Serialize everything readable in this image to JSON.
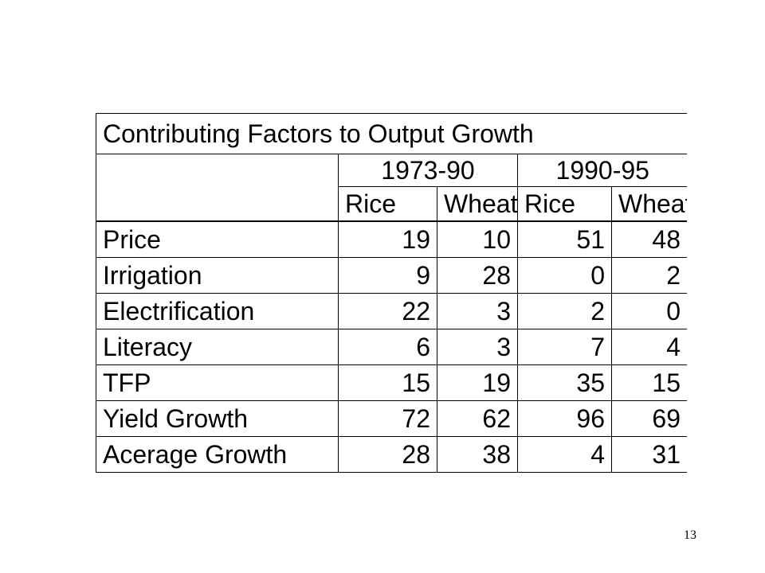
{
  "table": {
    "title": "Contributing Factors to Output Growth",
    "periods": [
      "1973-90",
      "1990-95"
    ],
    "crops": [
      "Rice",
      "Wheat",
      "Rice",
      "Wheat"
    ],
    "rows": [
      {
        "label": "Price",
        "values": [
          "19",
          "10",
          "51",
          "48"
        ]
      },
      {
        "label": "Irrigation",
        "values": [
          "9",
          "28",
          "0",
          "2"
        ]
      },
      {
        "label": "Electrification",
        "values": [
          "22",
          "3",
          "2",
          "0"
        ]
      },
      {
        "label": "Literacy",
        "values": [
          "6",
          "3",
          "7",
          "4"
        ]
      },
      {
        "label": "TFP",
        "values": [
          "15",
          "19",
          "35",
          "15"
        ]
      },
      {
        "label": "Yield Growth",
        "values": [
          "72",
          "62",
          "96",
          "69"
        ]
      },
      {
        "label": "Acerage Growth",
        "values": [
          "28",
          "38",
          "4",
          "31"
        ]
      }
    ]
  },
  "page_number": "13"
}
